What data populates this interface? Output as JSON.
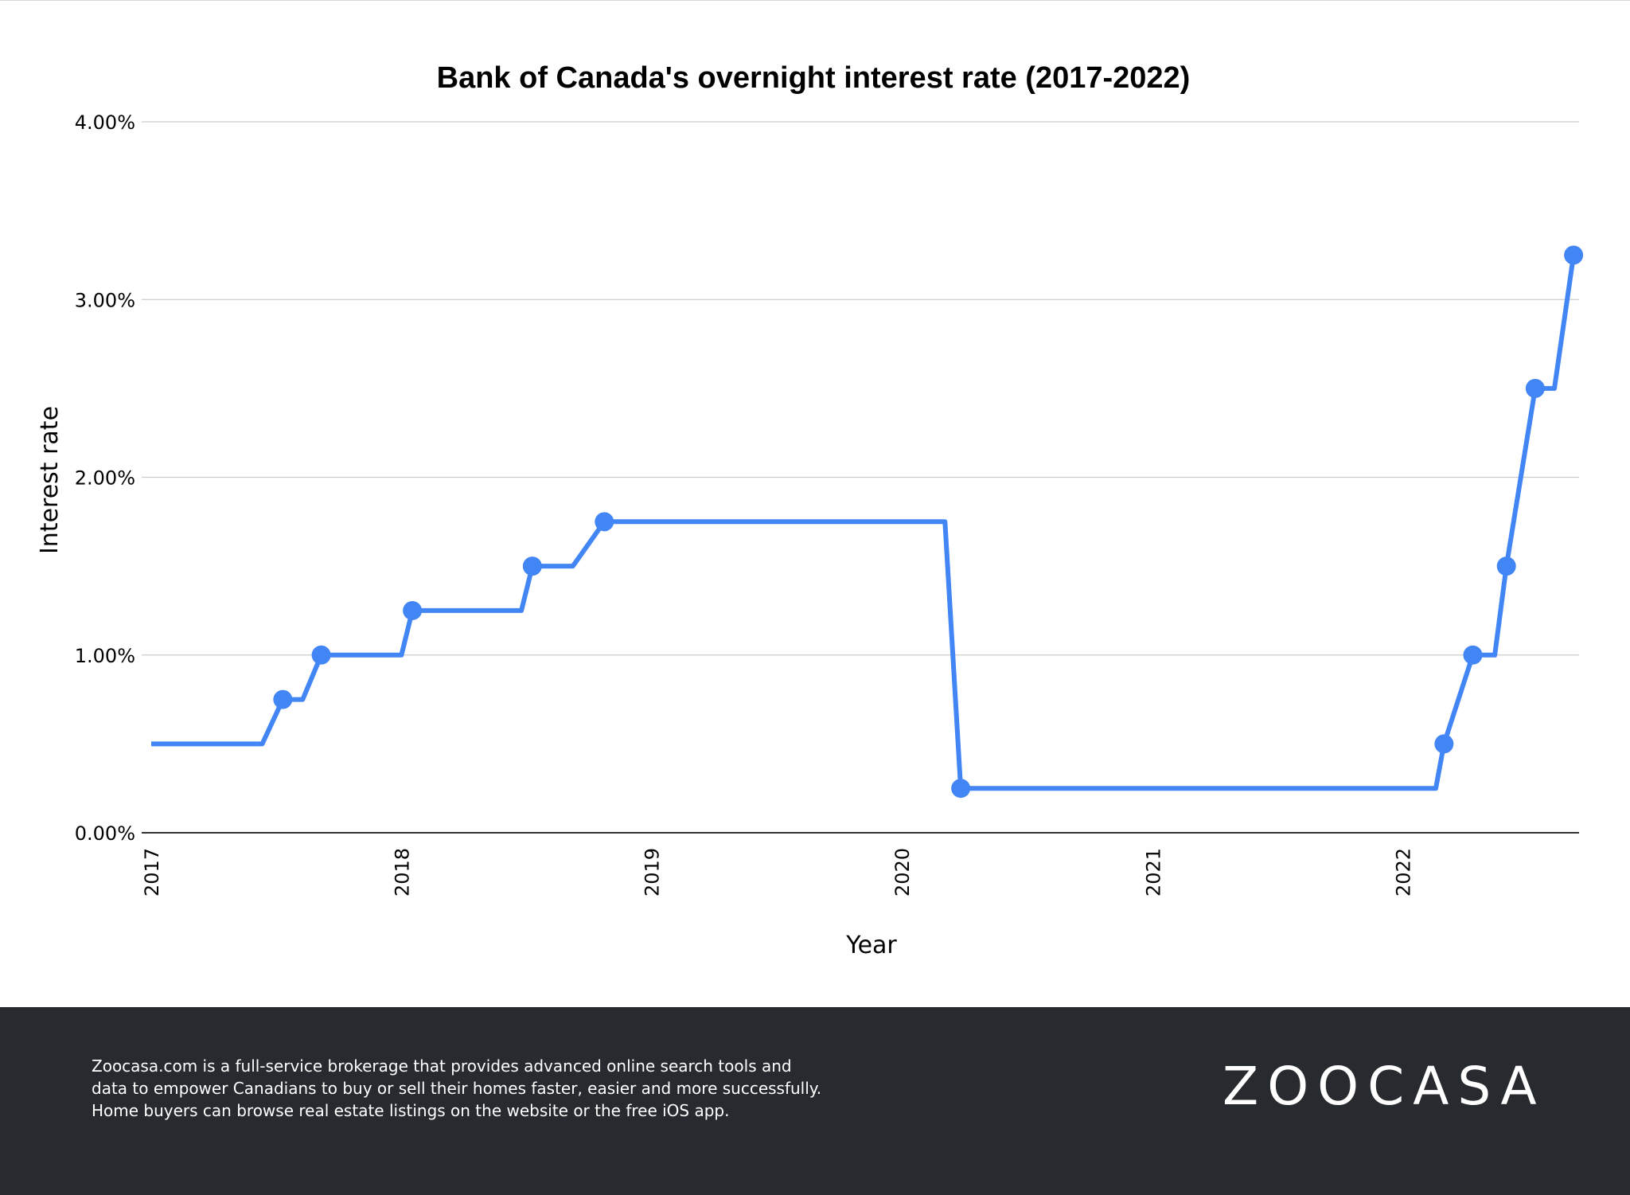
{
  "colors": {
    "line": "#4285f4",
    "grid": "#cccccc",
    "axis": "#333333",
    "footer_bg": "#272a2e",
    "footer_text": "#ffffff"
  },
  "chart_data": {
    "type": "line",
    "title": "Bank of Canada's overnight interest rate (2017-2022)",
    "xlabel": "Year",
    "ylabel": "Interest rate",
    "xlim": [
      "2017-01-01",
      "2022-09-15"
    ],
    "ylim": [
      0,
      4
    ],
    "x_ticks": [
      "2017",
      "2018",
      "2019",
      "2020",
      "2021",
      "2022"
    ],
    "y_ticks": [
      "0.00%",
      "1.00%",
      "2.00%",
      "3.00%",
      "4.00%"
    ],
    "y_tick_values": [
      0,
      1,
      2,
      3,
      4
    ],
    "grid": true,
    "series": [
      {
        "path": [
          {
            "x": "2017-01-01",
            "y": 0.5
          },
          {
            "x": "2017-06-12",
            "y": 0.5
          },
          {
            "x": "2017-07-12",
            "y": 0.75,
            "marker": true
          },
          {
            "x": "2017-08-10",
            "y": 0.75
          },
          {
            "x": "2017-09-06",
            "y": 1.0,
            "marker": true
          },
          {
            "x": "2018-01-01",
            "y": 1.0
          },
          {
            "x": "2018-01-17",
            "y": 1.25,
            "marker": true
          },
          {
            "x": "2018-06-25",
            "y": 1.25
          },
          {
            "x": "2018-07-11",
            "y": 1.5,
            "marker": true
          },
          {
            "x": "2018-09-08",
            "y": 1.5
          },
          {
            "x": "2018-10-24",
            "y": 1.75,
            "marker": true
          },
          {
            "x": "2020-03-04",
            "y": 1.75
          },
          {
            "x": "2020-03-27",
            "y": 0.25,
            "marker": true
          },
          {
            "x": "2022-02-18",
            "y": 0.25
          },
          {
            "x": "2022-03-02",
            "y": 0.5,
            "marker": true
          },
          {
            "x": "2022-04-13",
            "y": 1.0,
            "marker": true
          },
          {
            "x": "2022-05-15",
            "y": 1.0
          },
          {
            "x": "2022-06-01",
            "y": 1.5,
            "marker": true
          },
          {
            "x": "2022-07-13",
            "y": 2.5,
            "marker": true
          },
          {
            "x": "2022-08-10",
            "y": 2.5
          },
          {
            "x": "2022-09-07",
            "y": 3.25,
            "marker": true
          }
        ]
      }
    ]
  },
  "footer": {
    "lines": [
      "Zoocasa.com is a full-service brokerage that provides advanced online search tools and",
      "data to empower Canadians to buy or sell their homes faster, easier and more successfully.",
      "Home buyers can browse real estate listings on the website or the free iOS app."
    ],
    "logo_text": "ZOOCASA"
  }
}
